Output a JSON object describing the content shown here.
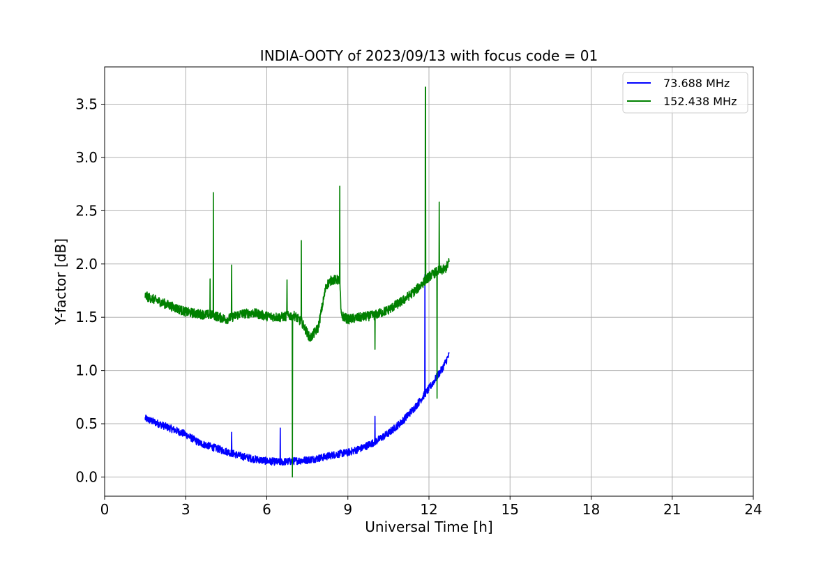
{
  "chart_data": {
    "type": "line",
    "title": "INDIA-OOTY of 2023/09/13 with focus code = 01",
    "xlabel": "Universal Time [h]",
    "ylabel": "Y-factor [dB]",
    "xlim": [
      0,
      24
    ],
    "ylim": [
      -0.18,
      3.85
    ],
    "xticks": [
      0,
      3,
      6,
      9,
      12,
      15,
      18,
      21,
      24
    ],
    "xtick_labels": [
      "0",
      "3",
      "6",
      "9",
      "12",
      "15",
      "18",
      "21",
      "24"
    ],
    "yticks": [
      0.0,
      0.5,
      1.0,
      1.5,
      2.0,
      2.5,
      3.0,
      3.5
    ],
    "ytick_labels": [
      "0.0",
      "0.5",
      "1.0",
      "1.5",
      "2.0",
      "2.5",
      "3.0",
      "3.5"
    ],
    "grid": true,
    "legend_position": "top-right",
    "series": [
      {
        "name": "73.688 MHz",
        "color": "#0000ff",
        "noise": 0.035,
        "x": [
          1.5,
          2.0,
          2.5,
          3.0,
          3.5,
          4.0,
          4.5,
          5.0,
          5.5,
          6.0,
          6.5,
          7.0,
          7.5,
          8.0,
          8.5,
          9.0,
          9.5,
          10.0,
          10.5,
          11.0,
          11.5,
          12.0,
          12.5,
          12.75
        ],
        "y": [
          0.55,
          0.5,
          0.45,
          0.4,
          0.32,
          0.28,
          0.24,
          0.2,
          0.17,
          0.15,
          0.14,
          0.15,
          0.16,
          0.18,
          0.21,
          0.23,
          0.27,
          0.33,
          0.41,
          0.52,
          0.66,
          0.83,
          1.02,
          1.15
        ],
        "spikes": [
          {
            "x": 4.7,
            "y": 0.42
          },
          {
            "x": 6.5,
            "y": 0.46
          },
          {
            "x": 11.85,
            "y": 1.9
          },
          {
            "x": 10.0,
            "y": 0.57
          }
        ]
      },
      {
        "name": "152.438 MHz",
        "color": "#008000",
        "noise": 0.045,
        "x": [
          1.5,
          2.0,
          2.5,
          3.0,
          3.5,
          4.0,
          4.5,
          5.0,
          5.5,
          6.0,
          6.5,
          7.0,
          7.3,
          7.6,
          7.9,
          8.2,
          8.4,
          8.7,
          8.75,
          9.0,
          9.5,
          10.0,
          10.5,
          11.0,
          11.5,
          12.0,
          12.3,
          12.6,
          12.75
        ],
        "y": [
          1.7,
          1.65,
          1.6,
          1.55,
          1.53,
          1.52,
          1.48,
          1.53,
          1.54,
          1.51,
          1.5,
          1.52,
          1.45,
          1.3,
          1.4,
          1.8,
          1.85,
          1.85,
          1.52,
          1.48,
          1.5,
          1.52,
          1.57,
          1.65,
          1.75,
          1.88,
          1.93,
          1.95,
          2.02
        ],
        "spikes": [
          {
            "x": 4.02,
            "y": 2.67
          },
          {
            "x": 4.7,
            "y": 1.99
          },
          {
            "x": 3.9,
            "y": 1.86
          },
          {
            "x": 6.75,
            "y": 1.85
          },
          {
            "x": 6.95,
            "y": 0.0
          },
          {
            "x": 7.28,
            "y": 2.22
          },
          {
            "x": 8.7,
            "y": 2.73
          },
          {
            "x": 10.0,
            "y": 1.2
          },
          {
            "x": 11.87,
            "y": 3.66
          },
          {
            "x": 12.3,
            "y": 0.74
          },
          {
            "x": 12.38,
            "y": 2.58
          }
        ]
      }
    ]
  }
}
